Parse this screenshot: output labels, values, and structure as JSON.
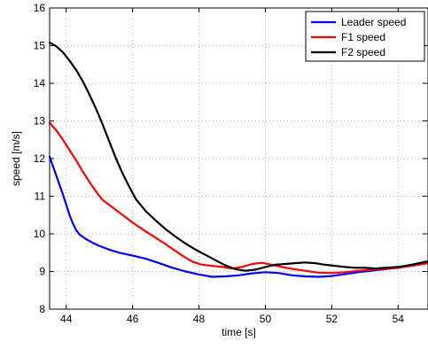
{
  "chart_data": {
    "type": "line",
    "title": "",
    "xlabel": "time [s]",
    "ylabel": "speed [m/s]",
    "xlim": [
      43.5,
      54.9
    ],
    "ylim": [
      8,
      16
    ],
    "xticks": [
      44,
      46,
      48,
      50,
      52,
      54
    ],
    "yticks": [
      8,
      9,
      10,
      11,
      12,
      13,
      14,
      15,
      16
    ],
    "grid": true,
    "legend_position": "top-right",
    "series": [
      {
        "name": "Leader speed",
        "color": "#0000ff",
        "points": [
          [
            43.5,
            12.05
          ],
          [
            43.6,
            11.8
          ],
          [
            43.7,
            11.55
          ],
          [
            43.8,
            11.3
          ],
          [
            43.9,
            11.05
          ],
          [
            44.0,
            10.78
          ],
          [
            44.1,
            10.5
          ],
          [
            44.2,
            10.28
          ],
          [
            44.3,
            10.1
          ],
          [
            44.4,
            9.98
          ],
          [
            44.6,
            9.86
          ],
          [
            44.8,
            9.76
          ],
          [
            45.0,
            9.68
          ],
          [
            45.3,
            9.58
          ],
          [
            45.6,
            9.5
          ],
          [
            46.0,
            9.42
          ],
          [
            46.4,
            9.34
          ],
          [
            46.8,
            9.22
          ],
          [
            47.2,
            9.1
          ],
          [
            47.6,
            9.0
          ],
          [
            48.0,
            8.92
          ],
          [
            48.4,
            8.86
          ],
          [
            48.8,
            8.87
          ],
          [
            49.2,
            8.9
          ],
          [
            49.6,
            8.95
          ],
          [
            50.0,
            8.98
          ],
          [
            50.4,
            8.96
          ],
          [
            50.8,
            8.9
          ],
          [
            51.2,
            8.87
          ],
          [
            51.6,
            8.86
          ],
          [
            52.0,
            8.88
          ],
          [
            52.4,
            8.93
          ],
          [
            52.8,
            8.98
          ],
          [
            53.2,
            9.02
          ],
          [
            53.6,
            9.06
          ],
          [
            54.0,
            9.1
          ],
          [
            54.4,
            9.18
          ],
          [
            54.9,
            9.26
          ]
        ]
      },
      {
        "name": "F1 speed",
        "color": "#ff0000",
        "points": [
          [
            43.5,
            12.95
          ],
          [
            43.7,
            12.75
          ],
          [
            43.9,
            12.5
          ],
          [
            44.1,
            12.22
          ],
          [
            44.3,
            11.95
          ],
          [
            44.5,
            11.65
          ],
          [
            44.7,
            11.38
          ],
          [
            44.9,
            11.12
          ],
          [
            45.1,
            10.9
          ],
          [
            45.4,
            10.7
          ],
          [
            45.7,
            10.5
          ],
          [
            46.0,
            10.3
          ],
          [
            46.3,
            10.12
          ],
          [
            46.6,
            9.95
          ],
          [
            46.9,
            9.78
          ],
          [
            47.2,
            9.6
          ],
          [
            47.5,
            9.42
          ],
          [
            47.8,
            9.26
          ],
          [
            48.1,
            9.18
          ],
          [
            48.4,
            9.15
          ],
          [
            48.7,
            9.12
          ],
          [
            49.0,
            9.08
          ],
          [
            49.3,
            9.12
          ],
          [
            49.6,
            9.2
          ],
          [
            49.9,
            9.23
          ],
          [
            50.2,
            9.18
          ],
          [
            50.5,
            9.12
          ],
          [
            50.8,
            9.07
          ],
          [
            51.2,
            9.02
          ],
          [
            51.6,
            8.97
          ],
          [
            52.0,
            8.96
          ],
          [
            52.4,
            8.98
          ],
          [
            52.8,
            9.02
          ],
          [
            53.2,
            9.05
          ],
          [
            53.6,
            9.07
          ],
          [
            54.0,
            9.1
          ],
          [
            54.4,
            9.15
          ],
          [
            54.9,
            9.22
          ]
        ]
      },
      {
        "name": "F2 speed",
        "color": "#000000",
        "points": [
          [
            43.5,
            15.08
          ],
          [
            43.7,
            14.98
          ],
          [
            43.9,
            14.82
          ],
          [
            44.1,
            14.6
          ],
          [
            44.3,
            14.35
          ],
          [
            44.5,
            14.05
          ],
          [
            44.7,
            13.7
          ],
          [
            44.9,
            13.32
          ],
          [
            45.1,
            12.9
          ],
          [
            45.3,
            12.45
          ],
          [
            45.5,
            12.0
          ],
          [
            45.7,
            11.6
          ],
          [
            45.9,
            11.25
          ],
          [
            46.1,
            10.92
          ],
          [
            46.4,
            10.6
          ],
          [
            46.7,
            10.35
          ],
          [
            47.0,
            10.12
          ],
          [
            47.3,
            9.92
          ],
          [
            47.6,
            9.74
          ],
          [
            47.9,
            9.58
          ],
          [
            48.2,
            9.44
          ],
          [
            48.5,
            9.3
          ],
          [
            48.8,
            9.16
          ],
          [
            49.1,
            9.06
          ],
          [
            49.4,
            9.02
          ],
          [
            49.7,
            9.05
          ],
          [
            50.0,
            9.12
          ],
          [
            50.3,
            9.18
          ],
          [
            50.6,
            9.2
          ],
          [
            50.9,
            9.22
          ],
          [
            51.2,
            9.24
          ],
          [
            51.5,
            9.22
          ],
          [
            51.8,
            9.18
          ],
          [
            52.1,
            9.15
          ],
          [
            52.4,
            9.12
          ],
          [
            52.7,
            9.1
          ],
          [
            53.0,
            9.1
          ],
          [
            53.3,
            9.08
          ],
          [
            53.6,
            9.1
          ],
          [
            54.0,
            9.12
          ],
          [
            54.4,
            9.18
          ],
          [
            54.9,
            9.27
          ]
        ]
      }
    ]
  }
}
